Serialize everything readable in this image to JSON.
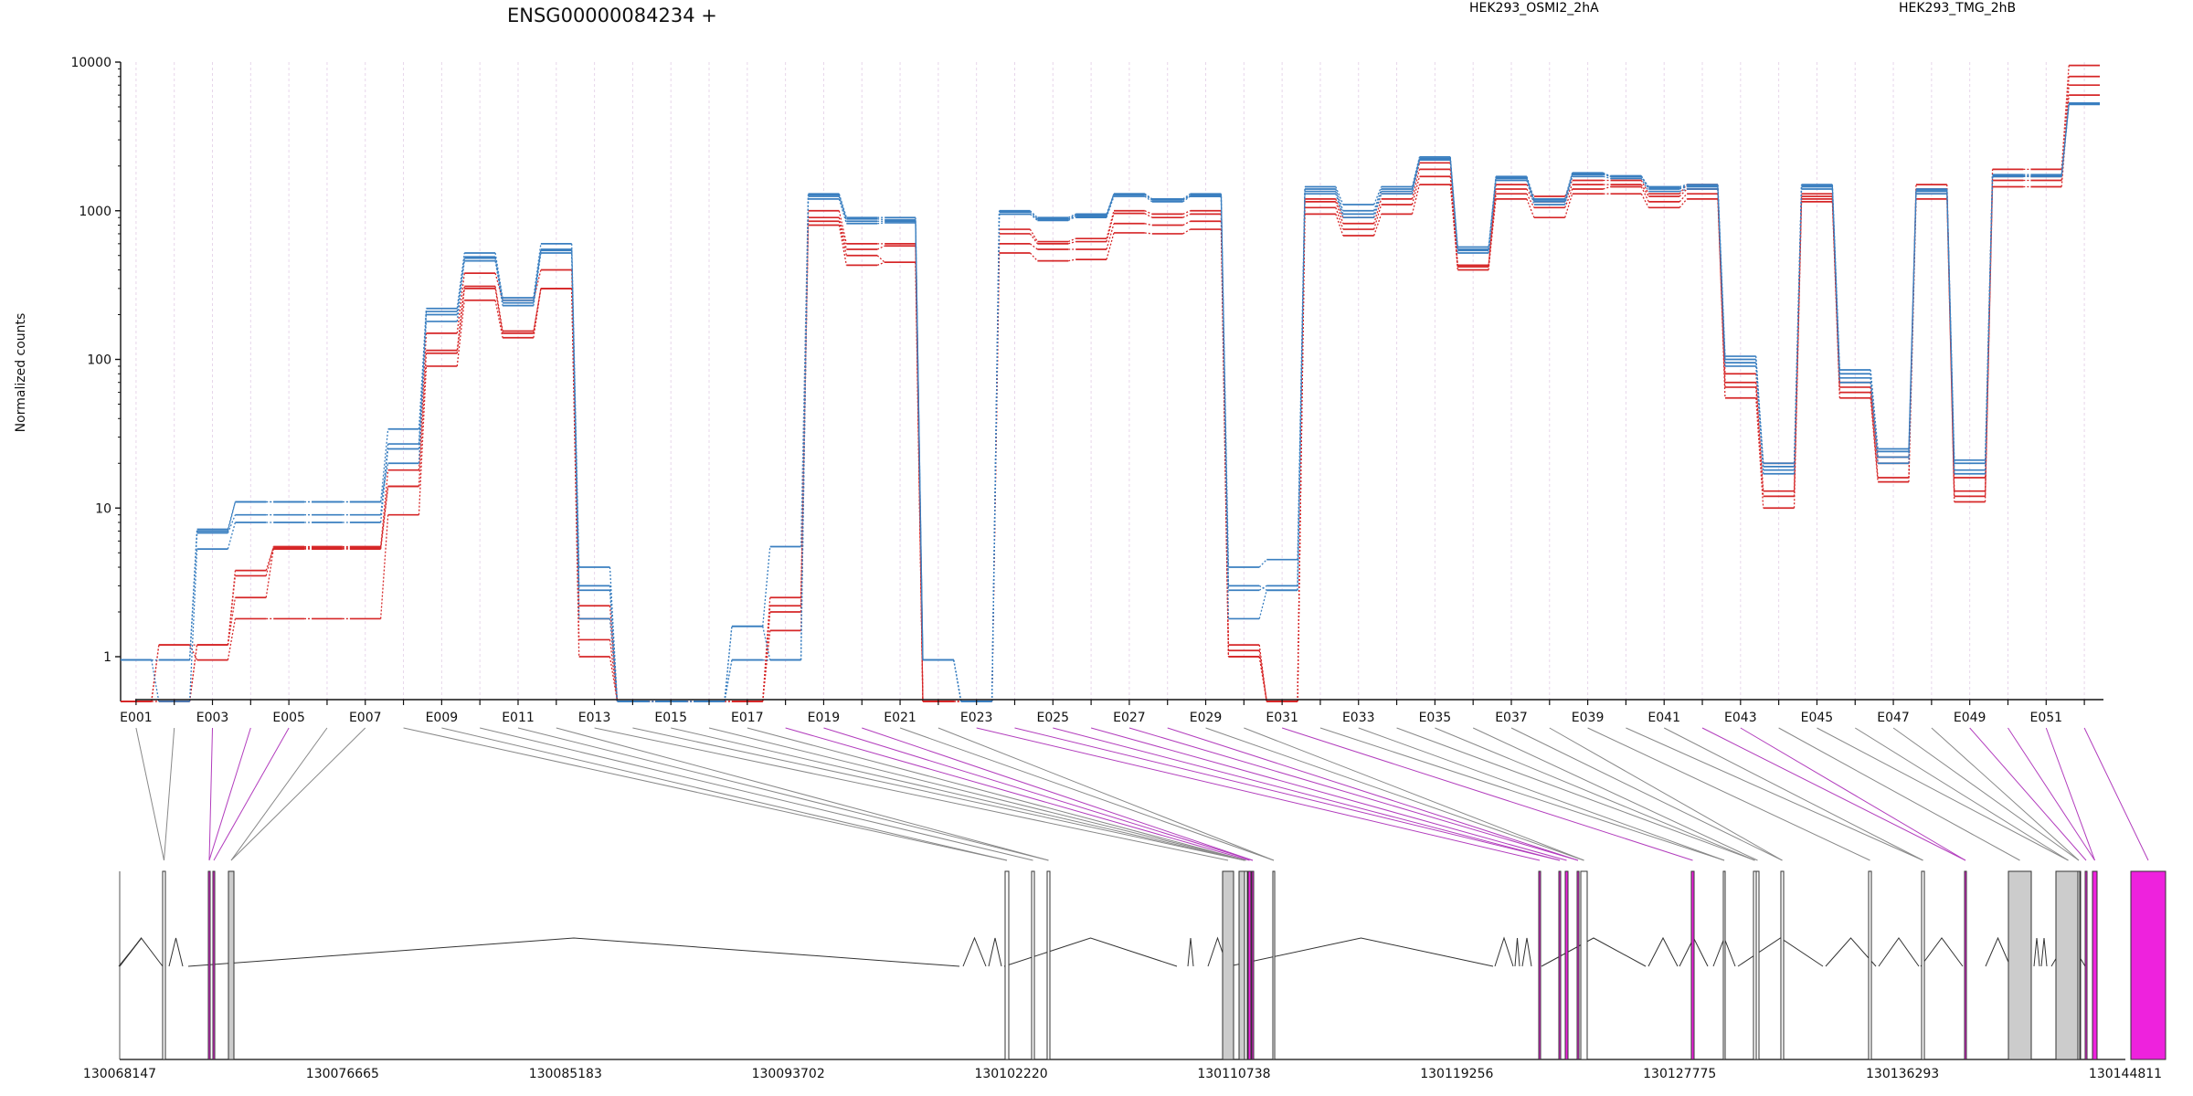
{
  "chart_data": {
    "type": "line",
    "title": "ENSG00000084234 +",
    "ylabel": "Normalized counts",
    "yscale": "log",
    "ylim": [
      0.5,
      10000
    ],
    "yticks": [
      1,
      10,
      100,
      1000,
      10000
    ],
    "ytick_labels": [
      "1",
      "10",
      "100",
      "1000",
      "10000"
    ],
    "xtick_labels": [
      "E001",
      "E003",
      "E005",
      "E007",
      "E009",
      "E011",
      "E013",
      "E015",
      "E017",
      "E019",
      "E021",
      "E023",
      "E025",
      "E027",
      "E029",
      "E031",
      "E033",
      "E035",
      "E037",
      "E039",
      "E041",
      "E043",
      "E045",
      "E047",
      "E049",
      "E051"
    ],
    "exons": [
      "E001",
      "E002",
      "E003",
      "E004",
      "E005",
      "E006",
      "E007",
      "E008",
      "E009",
      "E010",
      "E011",
      "E012",
      "E013",
      "E014",
      "E015",
      "E016",
      "E017",
      "E018",
      "E019",
      "E020",
      "E021",
      "E022",
      "E023",
      "E024",
      "E025",
      "E026",
      "E027",
      "E028",
      "E029",
      "E030",
      "E031",
      "E032",
      "E033",
      "E034",
      "E035",
      "E036",
      "E037",
      "E038",
      "E039",
      "E040",
      "E041",
      "E042",
      "E043",
      "E044",
      "E045",
      "E046",
      "E047",
      "E048",
      "E049",
      "E050",
      "E051",
      "E052"
    ],
    "legend": [
      {
        "label": "HEK293_OSMI2_2hA",
        "color": "#d62728"
      },
      {
        "label": "HEK293_TMG_2hB",
        "color": "#3a7fc0"
      }
    ],
    "series": [
      {
        "condition": "HEK293_OSMI2_2hA",
        "color": "#d62728",
        "values": [
          0.5,
          0.5,
          1.2,
          3.5,
          5.5,
          5.5,
          5.5,
          18,
          150,
          380,
          250,
          400,
          2.2,
          0.5,
          0.5,
          0.5,
          0.5,
          2.0,
          1000,
          600,
          600,
          0.5,
          0.5,
          750,
          620,
          650,
          1000,
          950,
          1000,
          1.2,
          0.5,
          1200,
          900,
          1300,
          2100,
          420,
          1500,
          1250,
          1600,
          1600,
          1300,
          1500,
          80,
          20,
          1300,
          70,
          22,
          1500,
          16,
          1900,
          1900,
          9500
        ]
      },
      {
        "condition": "HEK293_OSMI2_2hA",
        "color": "#d62728",
        "values": [
          0.5,
          1.2,
          0.95,
          1.8,
          1.8,
          1.8,
          1.8,
          9,
          90,
          250,
          140,
          300,
          1.0,
          0.5,
          0.5,
          0.5,
          0.5,
          1.5,
          850,
          500,
          450,
          0.5,
          0.5,
          600,
          550,
          550,
          820,
          800,
          850,
          1.0,
          0.5,
          1050,
          750,
          1100,
          1700,
          400,
          1300,
          1050,
          1400,
          1450,
          1150,
          1300,
          55,
          10,
          1150,
          60,
          16,
          1300,
          11,
          1600,
          1600,
          7000
        ]
      },
      {
        "condition": "HEK293_OSMI2_2hA",
        "color": "#d62728",
        "values": [
          0.5,
          1.2,
          1.2,
          2.5,
          5.3,
          5.3,
          5.3,
          14,
          110,
          300,
          150,
          300,
          1.3,
          0.5,
          0.5,
          0.5,
          0.5,
          2.2,
          800,
          430,
          450,
          0.5,
          0.5,
          520,
          460,
          470,
          710,
          700,
          750,
          1.0,
          0.5,
          950,
          680,
          950,
          1500,
          420,
          1200,
          900,
          1300,
          1300,
          1050,
          1200,
          65,
          12,
          1200,
          55,
          15,
          1200,
          12,
          1450,
          1450,
          6000
        ]
      },
      {
        "condition": "HEK293_OSMI2_2hA",
        "color": "#d62728",
        "values": [
          0.5,
          0.5,
          1.2,
          3.8,
          5.4,
          5.4,
          5.4,
          14,
          115,
          310,
          155,
          300,
          1.8,
          0.5,
          0.5,
          0.5,
          0.5,
          2.5,
          900,
          550,
          580,
          0.5,
          0.5,
          700,
          600,
          620,
          960,
          900,
          950,
          1.1,
          0.5,
          1150,
          820,
          1200,
          1900,
          430,
          1400,
          1150,
          1500,
          1500,
          1250,
          1400,
          70,
          13,
          1250,
          65,
          20,
          1400,
          13,
          1700,
          1700,
          8000
        ]
      },
      {
        "condition": "HEK293_TMG_2hB",
        "color": "#3a7fc0",
        "values": [
          0.95,
          0.95,
          7.0,
          11,
          11,
          11,
          11,
          34,
          220,
          520,
          260,
          600,
          4.0,
          0.5,
          0.5,
          0.5,
          1.6,
          5.5,
          1300,
          900,
          900,
          0.95,
          0.5,
          1000,
          900,
          950,
          1300,
          1200,
          1300,
          4.0,
          4.5,
          1450,
          1100,
          1450,
          2300,
          570,
          1700,
          1200,
          1800,
          1700,
          1450,
          1500,
          105,
          20,
          1500,
          85,
          25,
          1400,
          21,
          1750,
          1750,
          5200
        ]
      },
      {
        "condition": "HEK293_TMG_2hB",
        "color": "#3a7fc0",
        "values": [
          0.95,
          0.95,
          6.8,
          9.0,
          9.0,
          9.0,
          9.0,
          27,
          200,
          490,
          240,
          550,
          3.0,
          0.5,
          0.5,
          0.5,
          0.95,
          0.95,
          1250,
          850,
          850,
          0.95,
          0.5,
          950,
          880,
          900,
          1250,
          1150,
          1250,
          3.0,
          2.8,
          1350,
          950,
          1350,
          2200,
          540,
          1650,
          1150,
          1750,
          1700,
          1400,
          1450,
          95,
          18,
          1450,
          75,
          22,
          1350,
          18,
          1700,
          1700,
          5300
        ]
      },
      {
        "condition": "HEK293_TMG_2hB",
        "color": "#3a7fc0",
        "values": [
          0.95,
          0.5,
          5.3,
          8.0,
          8.0,
          8.0,
          8.0,
          25,
          180,
          460,
          230,
          520,
          1.8,
          0.5,
          0.5,
          0.5,
          0.95,
          0.95,
          1200,
          820,
          830,
          0.95,
          0.5,
          950,
          860,
          920,
          1300,
          1200,
          1250,
          1.8,
          2.8,
          1300,
          900,
          1300,
          2200,
          520,
          1600,
          1100,
          1700,
          1650,
          1350,
          1400,
          90,
          17,
          1400,
          70,
          20,
          1300,
          17,
          1700,
          1700,
          5200
        ]
      },
      {
        "condition": "HEK293_TMG_2hB",
        "color": "#3a7fc0",
        "values": [
          0.95,
          0.95,
          7.2,
          11,
          11,
          11,
          11,
          20,
          210,
          480,
          250,
          540,
          2.8,
          0.5,
          0.5,
          0.5,
          1.6,
          0.95,
          1280,
          880,
          870,
          0.95,
          0.5,
          980,
          880,
          940,
          1280,
          1180,
          1270,
          2.8,
          3.0,
          1400,
          1000,
          1400,
          2250,
          550,
          1680,
          1180,
          1780,
          1720,
          1420,
          1480,
          100,
          19,
          1480,
          80,
          24,
          1380,
          20,
          1720,
          1720,
          5250
        ]
      }
    ],
    "genomic_axis": {
      "tick_labels": [
        "130068147",
        "130076665",
        "130085183",
        "130093702",
        "130102220",
        "130110738",
        "130119256",
        "130127775",
        "130136293",
        "130144811"
      ]
    },
    "transcript_model": {
      "exon_types": [
        "white",
        "magenta",
        "magenta",
        "gray",
        "white",
        "white",
        "white",
        "gray",
        "gray",
        "white",
        "magenta",
        "magenta",
        "white",
        "magenta",
        "magenta",
        "magenta",
        "magenta",
        "white",
        "magenta",
        "white",
        "white",
        "white",
        "white",
        "white",
        "white",
        "magenta",
        "gray",
        "gray",
        "white",
        "magenta",
        "magenta",
        "magenta"
      ],
      "colors": {
        "white": "#ffffff",
        "magenta": "#ee22dd",
        "gray": "#cccccc"
      }
    }
  }
}
